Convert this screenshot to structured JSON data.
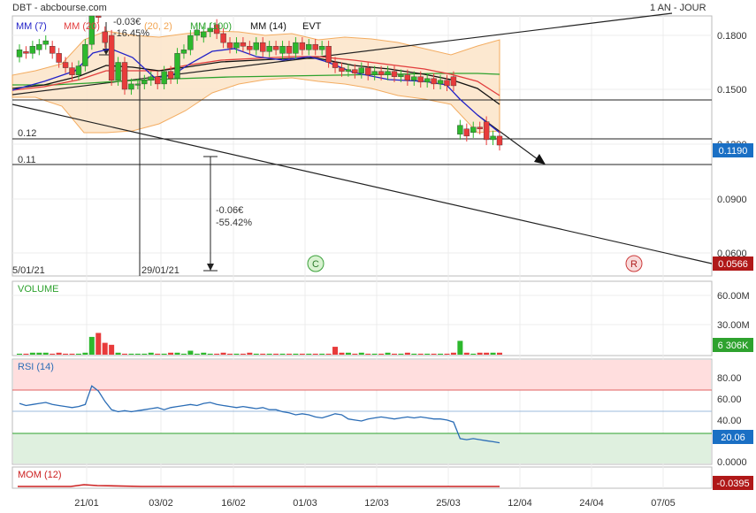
{
  "header": {
    "title": "DBT - abcbourse.com",
    "period": "1 AN - JOUR"
  },
  "legend": {
    "mm7": "MM (7)",
    "mm20": "MM (20)",
    "bb": "(20, 2)",
    "mm100": "MM (100)",
    "mm14": "MM (14)",
    "evt": "EVT"
  },
  "colors": {
    "up": "#2db82d",
    "down": "#e83b3b",
    "mm7": "#2323c8",
    "mm20": "#e23c3c",
    "bb": "#f2a450",
    "mm100": "#2ea22e",
    "mm14": "#111111",
    "rsi": "#2b6db6",
    "mom": "#cc2020"
  },
  "annotations": {
    "top_change": "-0.03€",
    "top_pct": "-16.45%",
    "mid_change": "-0.06€",
    "mid_pct": "-55.42%",
    "level_012": "0.12",
    "level_011": "0.11",
    "date_left": "5/01/21",
    "date_mid": "29/01/21",
    "marker_c": "C",
    "marker_r": "R"
  },
  "badges": {
    "price": "0.1190",
    "target": "0.0566",
    "volume": "6 306K",
    "rsi": "20.06",
    "mom": "-0.0395"
  },
  "panels": {
    "volume": "VOLUME",
    "rsi": "RSI (14)",
    "mom": "MOM (12)"
  },
  "chart_data": {
    "type": "candlestick",
    "price_axis": {
      "ticks": [
        "0.1800",
        "0.1500",
        "0.1200",
        "0.0900",
        "0.0600"
      ],
      "ylim": [
        0.056,
        0.2
      ]
    },
    "volume_axis": {
      "ticks": [
        "60.00M",
        "30.00M"
      ]
    },
    "rsi_axis": {
      "ticks": [
        "80.00",
        "60.00",
        "40.00",
        "0.0000"
      ],
      "ylim": [
        0,
        100
      ]
    },
    "x_ticks": [
      "21/01",
      "03/02",
      "16/02",
      "01/03",
      "12/03",
      "25/03",
      "12/04",
      "24/04",
      "07/05"
    ],
    "candles": [
      {
        "o": 0.168,
        "c": 0.172
      },
      {
        "o": 0.171,
        "c": 0.17
      },
      {
        "o": 0.17,
        "c": 0.174
      },
      {
        "o": 0.172,
        "c": 0.175
      },
      {
        "o": 0.175,
        "c": 0.177
      },
      {
        "o": 0.174,
        "c": 0.17
      },
      {
        "o": 0.17,
        "c": 0.165
      },
      {
        "o": 0.165,
        "c": 0.162
      },
      {
        "o": 0.162,
        "c": 0.158
      },
      {
        "o": 0.158,
        "c": 0.163
      },
      {
        "o": 0.163,
        "c": 0.175
      },
      {
        "o": 0.175,
        "c": 0.21
      },
      {
        "o": 0.205,
        "c": 0.19
      },
      {
        "o": 0.182,
        "c": 0.176
      },
      {
        "o": 0.18,
        "c": 0.155
      },
      {
        "o": 0.155,
        "c": 0.165
      },
      {
        "o": 0.165,
        "c": 0.15
      },
      {
        "o": 0.15,
        "c": 0.153
      },
      {
        "o": 0.153,
        "c": 0.153
      },
      {
        "o": 0.153,
        "c": 0.155
      },
      {
        "o": 0.155,
        "c": 0.157
      },
      {
        "o": 0.157,
        "c": 0.153
      },
      {
        "o": 0.153,
        "c": 0.16
      },
      {
        "o": 0.16,
        "c": 0.156
      },
      {
        "o": 0.156,
        "c": 0.17
      },
      {
        "o": 0.17,
        "c": 0.172
      },
      {
        "o": 0.172,
        "c": 0.18
      },
      {
        "o": 0.18,
        "c": 0.183
      },
      {
        "o": 0.179,
        "c": 0.182
      },
      {
        "o": 0.182,
        "c": 0.184
      },
      {
        "o": 0.186,
        "c": 0.181
      },
      {
        "o": 0.181,
        "c": 0.176
      },
      {
        "o": 0.176,
        "c": 0.173
      },
      {
        "o": 0.173,
        "c": 0.176
      },
      {
        "o": 0.176,
        "c": 0.174
      },
      {
        "o": 0.174,
        "c": 0.172
      },
      {
        "o": 0.172,
        "c": 0.176
      },
      {
        "o": 0.176,
        "c": 0.171
      },
      {
        "o": 0.171,
        "c": 0.174
      },
      {
        "o": 0.174,
        "c": 0.172
      },
      {
        "o": 0.17,
        "c": 0.174
      },
      {
        "o": 0.174,
        "c": 0.17
      },
      {
        "o": 0.17,
        "c": 0.176
      },
      {
        "o": 0.176,
        "c": 0.172
      },
      {
        "o": 0.172,
        "c": 0.175
      },
      {
        "o": 0.175,
        "c": 0.172
      },
      {
        "o": 0.172,
        "c": 0.174
      },
      {
        "o": 0.174,
        "c": 0.165
      },
      {
        "o": 0.165,
        "c": 0.162
      },
      {
        "o": 0.162,
        "c": 0.16
      },
      {
        "o": 0.16,
        "c": 0.161
      },
      {
        "o": 0.161,
        "c": 0.159
      },
      {
        "o": 0.159,
        "c": 0.162
      },
      {
        "o": 0.162,
        "c": 0.158
      },
      {
        "o": 0.158,
        "c": 0.16
      },
      {
        "o": 0.16,
        "c": 0.158
      },
      {
        "o": 0.158,
        "c": 0.16
      },
      {
        "o": 0.16,
        "c": 0.157
      },
      {
        "o": 0.157,
        "c": 0.158
      },
      {
        "o": 0.158,
        "c": 0.155
      },
      {
        "o": 0.155,
        "c": 0.157
      },
      {
        "o": 0.157,
        "c": 0.154
      },
      {
        "o": 0.154,
        "c": 0.156
      },
      {
        "o": 0.156,
        "c": 0.153
      },
      {
        "o": 0.153,
        "c": 0.155
      },
      {
        "o": 0.155,
        "c": 0.152
      },
      {
        "o": 0.157,
        "c": 0.152
      },
      {
        "o": 0.125,
        "c": 0.13
      },
      {
        "o": 0.128,
        "c": 0.124
      },
      {
        "o": 0.126,
        "c": 0.129
      },
      {
        "o": 0.129,
        "c": 0.128
      },
      {
        "o": 0.132,
        "c": 0.122
      },
      {
        "o": 0.122,
        "c": 0.124
      },
      {
        "o": 0.124,
        "c": 0.119
      }
    ],
    "volumes_m": [
      1,
      1,
      2,
      2,
      2,
      1,
      2,
      1,
      1,
      1,
      2,
      18,
      22,
      12,
      10,
      2,
      1,
      1,
      1,
      1,
      2,
      1,
      1,
      2,
      2,
      1,
      4,
      1,
      2,
      1,
      1,
      2,
      1,
      1,
      1,
      2,
      1,
      1,
      1,
      1,
      1,
      1,
      1,
      1,
      1,
      1,
      1,
      1,
      8,
      2,
      2,
      1,
      2,
      1,
      1,
      1,
      2,
      1,
      1,
      2,
      1,
      1,
      1,
      1,
      1,
      1,
      2,
      14,
      2,
      1,
      2,
      2,
      2,
      2
    ],
    "rsi": [
      58,
      56,
      57,
      58,
      59,
      57,
      56,
      55,
      54,
      55,
      57,
      75,
      70,
      60,
      52,
      50,
      51,
      50,
      51,
      52,
      53,
      54,
      52,
      54,
      55,
      56,
      57,
      56,
      58,
      59,
      57,
      56,
      55,
      54,
      55,
      54,
      53,
      54,
      52,
      52,
      50,
      49,
      47,
      48,
      47,
      45,
      44,
      46,
      48,
      47,
      43,
      42,
      41,
      43,
      44,
      45,
      44,
      43,
      44,
      45,
      44,
      45,
      44,
      43,
      43,
      42,
      40,
      24,
      23,
      24,
      23,
      22,
      21,
      20
    ]
  }
}
